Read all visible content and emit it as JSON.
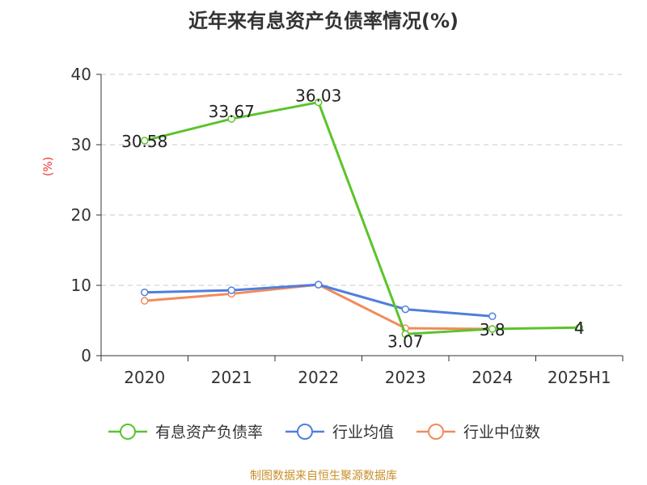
{
  "chart_data": {
    "type": "line",
    "title": "近年来有息资产负债率情况(%)",
    "ylabel": "(%)",
    "xlabel": "",
    "categories": [
      "2020",
      "2021",
      "2022",
      "2023",
      "2024",
      "2025H1"
    ],
    "ylim": [
      0,
      40
    ],
    "yticks": [
      0,
      10,
      20,
      30,
      40
    ],
    "grid": true,
    "legend_position": "bottom",
    "series": [
      {
        "name": "有息资产负债率",
        "color": "#5ac42b",
        "values": [
          30.58,
          33.67,
          36.03,
          3.07,
          3.8,
          4
        ],
        "labels": [
          "30.58",
          "33.67",
          "36.03",
          "3.07",
          "3.8",
          "4"
        ]
      },
      {
        "name": "行业均值",
        "color": "#4f7fdc",
        "values": [
          9.0,
          9.3,
          10.1,
          6.6,
          5.6,
          null
        ]
      },
      {
        "name": "行业中位数",
        "color": "#f28b5c",
        "values": [
          7.8,
          8.8,
          10.1,
          3.9,
          3.8,
          null
        ]
      }
    ]
  },
  "source": "制图数据来自恒生聚源数据库"
}
